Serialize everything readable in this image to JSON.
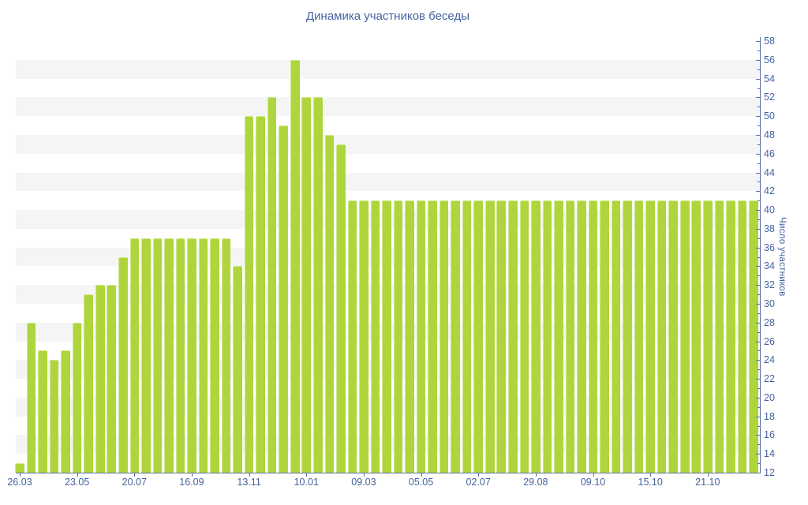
{
  "title": "Динамика участников беседы",
  "chart_data": {
    "type": "bar",
    "title": "Динамика участников беседы",
    "xlabel": "",
    "ylabel": "Число участников",
    "ylim": [
      12,
      58
    ],
    "y_tick_step": 2,
    "grid": "alternating horizontal 2-unit bands",
    "legend": "none",
    "bar_count": 65,
    "values": [
      13,
      28,
      25,
      24,
      25,
      28,
      31,
      32,
      32,
      35,
      37,
      37,
      37,
      37,
      37,
      37,
      37,
      37,
      37,
      34,
      50,
      50,
      52,
      49,
      56,
      52,
      52,
      48,
      47,
      41,
      41,
      41,
      41,
      41,
      41,
      41,
      41,
      41,
      41,
      41,
      41,
      41,
      41,
      41,
      41,
      41,
      41,
      41,
      41,
      41,
      41,
      41,
      41,
      41,
      41,
      41,
      41,
      41,
      41,
      41,
      41,
      41,
      41,
      41,
      41
    ],
    "x_tick_labels": [
      "26.03",
      "23.05",
      "20.07",
      "16.09",
      "13.11",
      "10.01",
      "09.03",
      "05.05",
      "02.07",
      "29.08",
      "09.10",
      "15.10",
      "21.10"
    ],
    "x_tick_bar_indices": [
      0,
      5,
      10,
      15,
      20,
      25,
      30,
      35,
      40,
      45,
      50,
      55,
      60
    ],
    "y_tick_labels": [
      "12",
      "14",
      "16",
      "18",
      "20",
      "22",
      "24",
      "26",
      "28",
      "30",
      "32",
      "34",
      "36",
      "38",
      "40",
      "42",
      "44",
      "46",
      "48",
      "50",
      "52",
      "54",
      "56",
      "58"
    ]
  },
  "colors": {
    "bar_fill": "#aed63c",
    "bar_highlight": "#cde87c",
    "axis_line": "#5b6da6",
    "label_text": "#44639e",
    "band_gray": "#f5f5f6",
    "background": "#ffffff"
  }
}
